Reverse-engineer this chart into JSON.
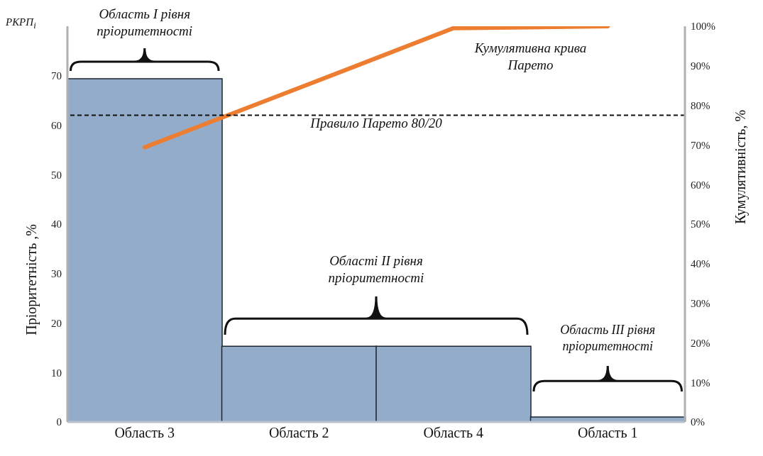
{
  "chart_data": {
    "type": "bar",
    "categories": [
      "Область 3",
      "Область 2",
      "Область 4",
      "Область 1"
    ],
    "series": [
      {
        "color": "#93acc9",
        "values": [
          69.4,
          15.3,
          15.3,
          1.0
        ]
      },
      {
        "type": "line",
        "axis": "y2",
        "color": "#ed7d31",
        "values": [
          69.4,
          84.4,
          99.5,
          100
        ]
      }
    ],
    "ylabel": "Пріоритетність ,%",
    "y2label": "Кумулятивність, %",
    "ylim": [
      0,
      80
    ],
    "yticks": [
      0,
      10,
      20,
      30,
      40,
      50,
      60,
      70
    ],
    "y2lim": [
      0,
      100
    ],
    "y2ticks": [
      {
        "value": 0,
        "label": "0%"
      },
      {
        "value": 10,
        "label": "10%"
      },
      {
        "value": 20,
        "label": "20%"
      },
      {
        "value": 30,
        "label": "30%"
      },
      {
        "value": 40,
        "label": "40%"
      },
      {
        "value": 50,
        "label": "50%"
      },
      {
        "value": 60,
        "label": "60%"
      },
      {
        "value": 70,
        "label": "70%"
      },
      {
        "value": 80,
        "label": "80%"
      },
      {
        "value": 90,
        "label": "90%"
      },
      {
        "value": 100,
        "label": "100%"
      }
    ],
    "ref_lines": [
      {
        "axis": "y2",
        "value": 77.5,
        "label": "Правило Парето 80/20",
        "color": "#111111",
        "line_style": "dashed"
      }
    ],
    "annotations": [
      "РКРП$_{i}$",
      "Область I рівня пріоритетності",
      "Кумулятивна крива Парето",
      "Області II рівня пріоритетності",
      "Область III рівня пріоритетності"
    ]
  }
}
